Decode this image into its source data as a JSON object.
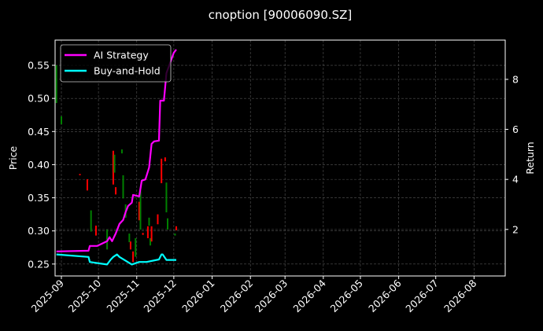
{
  "chart_data": {
    "type": "line",
    "title": "cnoption [90006090.SZ]",
    "xlabel": "",
    "ylabel": "Price",
    "y2label": "Return",
    "ylim": [
      0.232,
      0.588
    ],
    "y2lim": [
      0.14,
      9.57
    ],
    "xlim": [
      "2025-08-27",
      "2026-08-26"
    ],
    "yticks": [
      "0.25",
      "0.30",
      "0.35",
      "0.40",
      "0.45",
      "0.50",
      "0.55"
    ],
    "y2ticks": [
      "2",
      "4",
      "6",
      "8"
    ],
    "xticks": [
      "2025-09",
      "2025-10",
      "2025-11",
      "2025-12",
      "2026-01",
      "2026-02",
      "2026-03",
      "2026-04",
      "2026-05",
      "2026-06",
      "2026-07",
      "2026-08"
    ],
    "grid": true,
    "legend_position": "top-left",
    "colors": {
      "up": "#008000",
      "down": "#ff0000",
      "ai": "#ff00ff",
      "bh": "#00ffff"
    },
    "candles": [
      {
        "date": "2025-08-28",
        "o": 0.493,
        "c": 0.55
      },
      {
        "date": "2025-09-01",
        "o": 0.461,
        "c": 0.473
      },
      {
        "date": "2025-09-16",
        "o": 0.386,
        "c": 0.384
      },
      {
        "date": "2025-09-22",
        "o": 0.378,
        "c": 0.361
      },
      {
        "date": "2025-09-25",
        "o": 0.299,
        "c": 0.331
      },
      {
        "date": "2025-09-29",
        "o": 0.308,
        "c": 0.293
      },
      {
        "date": "2025-10-08",
        "o": 0.272,
        "c": 0.302
      },
      {
        "date": "2025-10-13",
        "o": 0.421,
        "c": 0.37
      },
      {
        "date": "2025-10-14",
        "o": 0.388,
        "c": 0.415
      },
      {
        "date": "2025-10-15",
        "o": 0.366,
        "c": 0.355
      },
      {
        "date": "2025-10-20",
        "o": 0.417,
        "c": 0.423
      },
      {
        "date": "2025-10-21",
        "o": 0.349,
        "c": 0.384
      },
      {
        "date": "2025-10-23",
        "o": 0.32,
        "c": 0.34
      },
      {
        "date": "2025-10-26",
        "o": 0.283,
        "c": 0.296
      },
      {
        "date": "2025-10-27",
        "o": 0.284,
        "c": 0.272
      },
      {
        "date": "2025-10-29",
        "o": 0.269,
        "c": 0.253
      },
      {
        "date": "2025-10-31",
        "o": 0.261,
        "c": 0.289
      },
      {
        "date": "2025-11-03",
        "o": 0.344,
        "c": 0.316
      },
      {
        "date": "2025-11-04",
        "o": 0.302,
        "c": 0.361
      },
      {
        "date": "2025-11-06",
        "o": 0.297,
        "c": 0.294
      },
      {
        "date": "2025-11-10",
        "o": 0.307,
        "c": 0.289
      },
      {
        "date": "2025-11-11",
        "o": 0.308,
        "c": 0.32
      },
      {
        "date": "2025-11-12",
        "o": 0.278,
        "c": 0.289
      },
      {
        "date": "2025-11-13",
        "o": 0.307,
        "c": 0.284
      },
      {
        "date": "2025-11-18",
        "o": 0.325,
        "c": 0.31
      },
      {
        "date": "2025-11-21",
        "o": 0.409,
        "c": 0.372
      },
      {
        "date": "2025-11-24",
        "o": 0.411,
        "c": 0.405
      },
      {
        "date": "2025-11-25",
        "o": 0.328,
        "c": 0.373
      },
      {
        "date": "2025-11-26",
        "o": 0.302,
        "c": 0.319
      },
      {
        "date": "2025-12-02",
        "o": 0.293,
        "c": 0.296
      },
      {
        "date": "2025-12-03",
        "o": 0.307,
        "c": 0.301
      }
    ],
    "series": [
      {
        "name": "AI Strategy",
        "color": "#ff00ff",
        "x": [
          "2025-08-28",
          "2025-09-23",
          "2025-09-24",
          "2025-09-30",
          "2025-10-08",
          "2025-10-10",
          "2025-10-12",
          "2025-10-15",
          "2025-10-18",
          "2025-10-21",
          "2025-10-23",
          "2025-10-25",
          "2025-10-28",
          "2025-10-29",
          "2025-11-03",
          "2025-11-05",
          "2025-11-08",
          "2025-11-11",
          "2025-11-13",
          "2025-11-15",
          "2025-11-19",
          "2025-11-20",
          "2025-11-23",
          "2025-11-25",
          "2025-12-01",
          "2025-12-03"
        ],
        "values": [
          1.12,
          1.15,
          1.34,
          1.34,
          1.53,
          1.69,
          1.53,
          1.84,
          2.22,
          2.38,
          2.69,
          2.94,
          3.07,
          3.38,
          3.32,
          3.95,
          4.0,
          4.48,
          5.42,
          5.52,
          5.55,
          7.15,
          7.15,
          8.25,
          9.07,
          9.19
        ]
      },
      {
        "name": "Buy-and-Hold",
        "color": "#00ffff",
        "x": [
          "2025-08-28",
          "2025-09-23",
          "2025-09-24",
          "2025-10-08",
          "2025-10-11",
          "2025-10-13",
          "2025-10-16",
          "2025-10-18",
          "2025-10-23",
          "2025-10-28",
          "2025-11-03",
          "2025-11-09",
          "2025-11-19",
          "2025-11-21",
          "2025-11-22",
          "2025-11-25",
          "2025-12-03"
        ],
        "values": [
          1.0,
          0.9,
          0.7,
          0.6,
          0.8,
          0.9,
          1.0,
          0.9,
          0.75,
          0.6,
          0.7,
          0.7,
          0.8,
          1.0,
          1.0,
          0.78,
          0.78
        ]
      }
    ]
  }
}
